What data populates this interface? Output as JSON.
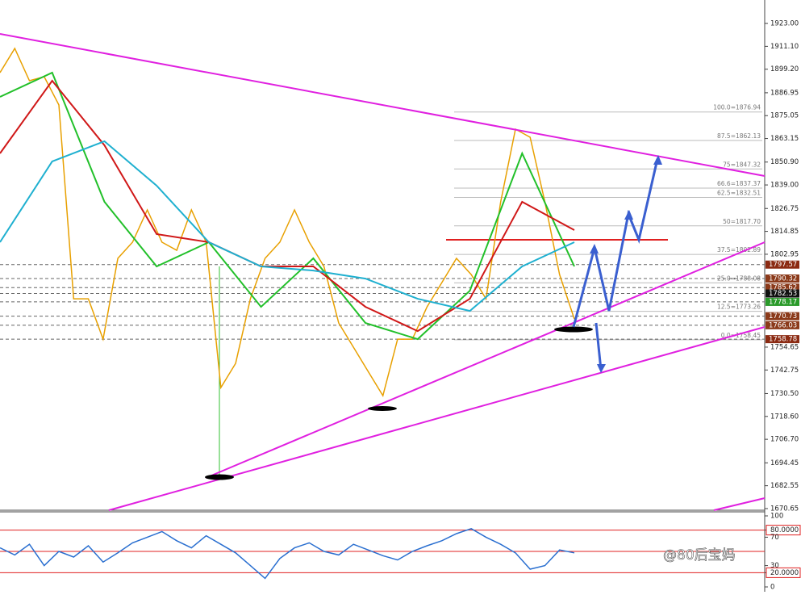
{
  "chart_data": [
    {
      "type": "line",
      "ylim": [
        1669.8,
        1935.2
      ],
      "yticks": [
        {
          "value": 1923.0,
          "label": "1923.00"
        },
        {
          "value": 1911.1,
          "label": "1911.10"
        },
        {
          "value": 1899.2,
          "label": "1899.20"
        },
        {
          "value": 1886.95,
          "label": "1886.95"
        },
        {
          "value": 1875.05,
          "label": "1875.05"
        },
        {
          "value": 1863.15,
          "label": "1863.15"
        },
        {
          "value": 1850.9,
          "label": "1850.90"
        },
        {
          "value": 1839.0,
          "label": "1839.00"
        },
        {
          "value": 1826.75,
          "label": "1826.75"
        },
        {
          "value": 1814.85,
          "label": "1814.85"
        },
        {
          "value": 1802.95,
          "label": "1802.95"
        },
        {
          "value": 1754.65,
          "label": "1754.65"
        },
        {
          "value": 1742.75,
          "label": "1742.75"
        },
        {
          "value": 1730.5,
          "label": "1730.50"
        },
        {
          "value": 1718.6,
          "label": "1718.60"
        },
        {
          "value": 1706.7,
          "label": "1706.70"
        },
        {
          "value": 1694.45,
          "label": "1694.45"
        },
        {
          "value": 1682.55,
          "label": "1682.55"
        },
        {
          "value": 1670.65,
          "label": "1670.65"
        }
      ],
      "series": [
        {
          "name": "Price",
          "color": "#e8a000",
          "values": [
            1897.4,
            1910.0,
            1893.2,
            1895.3,
            1880.6,
            1779.8,
            1779.8,
            1758.8,
            1800.8,
            1809.2,
            1826.0,
            1809.2,
            1805.0,
            1826.0,
            1809.2,
            1733.6,
            1746.2,
            1779.8,
            1800.8,
            1809.2,
            1826.0,
            1809.2,
            1796.6,
            1767.2,
            1754.6,
            1742.0,
            1729.4,
            1758.8,
            1758.8,
            1775.6,
            1788.2,
            1800.8,
            1792.4,
            1779.8,
            1830.2,
            1868.0,
            1863.8,
            1830.2,
            1792.4,
            1769.3
          ]
        },
        {
          "name": "MA green",
          "color": "#22c02a",
          "values": [
            1884.8,
            1897.4,
            1830.2,
            1796.6,
            1809.2,
            1775.6,
            1800.8,
            1767.2,
            1758.8,
            1784.0,
            1855.4,
            1796.6
          ]
        },
        {
          "name": "MA red",
          "color": "#d01818",
          "values": [
            1855.4,
            1893.2,
            1859.6,
            1813.4,
            1809.2,
            1796.6,
            1796.6,
            1775.6,
            1763.0,
            1779.8,
            1830.2,
            1815.5
          ]
        },
        {
          "name": "MA teal",
          "color": "#1fb0d0",
          "values": [
            1809.2,
            1851.2,
            1861.7,
            1838.6,
            1809.2,
            1796.6,
            1794.5,
            1790.3,
            1779.8,
            1773.5,
            1796.6,
            1809.2
          ]
        }
      ],
      "fib_levels": [
        {
          "value": 1876.94,
          "label": "100.0=1876.94"
        },
        {
          "value": 1862.13,
          "label": "87.5=1862.13"
        },
        {
          "value": 1847.32,
          "label": "75=1847.32"
        },
        {
          "value": 1837.37,
          "label": "66.6=1837.37"
        },
        {
          "value": 1832.51,
          "label": "62.5=1832.51"
        },
        {
          "value": 1817.7,
          "label": "50=1817.70"
        },
        {
          "value": 1802.89,
          "label": "37.5=1802.89"
        },
        {
          "value": 1788.08,
          "label": "25.0=1788.08"
        },
        {
          "value": 1773.26,
          "label": "12.5=1773.26"
        },
        {
          "value": 1758.45,
          "label": "0.0=1758.45"
        }
      ],
      "price_labels": [
        {
          "value": 1797.57,
          "label": "1797.57",
          "color": "#8b2a12"
        },
        {
          "value": 1790.32,
          "label": "1790.32",
          "color": "#8b3a1a"
        },
        {
          "value": 1785.62,
          "label": "1785.62",
          "color": "#8b3a1a"
        },
        {
          "value": 1782.53,
          "label": "1782.53",
          "color": "#111111"
        },
        {
          "value": 1778.17,
          "label": "1778.17",
          "color": "#2a9a2a"
        },
        {
          "value": 1770.73,
          "label": "1770.73",
          "color": "#8b3a1a"
        },
        {
          "value": 1766.03,
          "label": "1766.03",
          "color": "#8b3a1a"
        },
        {
          "value": 1758.78,
          "label": "1758.78",
          "color": "#8b2a12"
        }
      ]
    },
    {
      "type": "line",
      "ylim": [
        0,
        100
      ],
      "yticks": [
        100,
        {
          "value": 80,
          "label": "80.0000"
        },
        70,
        30,
        {
          "value": 20,
          "label": "20.0000"
        },
        0
      ],
      "levels": [
        80,
        50,
        20
      ],
      "series": [
        {
          "name": "RSI",
          "color": "#2a6fd0",
          "values": [
            55,
            45,
            60,
            30,
            50,
            42,
            58,
            35,
            48,
            62,
            70,
            78,
            65,
            55,
            72,
            60,
            48,
            30,
            12,
            40,
            55,
            62,
            50,
            45,
            60,
            52,
            44,
            38,
            50,
            58,
            65,
            75,
            82,
            70,
            60,
            48,
            25,
            30,
            52,
            48
          ]
        }
      ]
    }
  ],
  "watermark": "@80后宝妈"
}
